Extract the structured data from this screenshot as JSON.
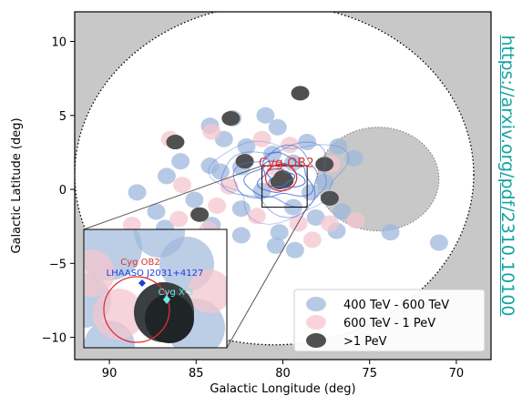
{
  "chart_data": {
    "type": "scatter",
    "title": "",
    "xlabel": "Galactic Longitude (deg)",
    "ylabel": "Galactic Latitude (deg)",
    "xlim": [
      92,
      68
    ],
    "ylim": [
      -11.5,
      12
    ],
    "x_ticks": [
      90,
      85,
      80,
      75,
      70
    ],
    "y_ticks": [
      10,
      5,
      0,
      -5,
      -10
    ],
    "x_tick_labels": [
      "90",
      "85",
      "80",
      "75",
      "70"
    ],
    "y_tick_labels": [
      "10",
      "5",
      "0",
      "−5",
      "−10"
    ],
    "legend_position": "bottom-right",
    "series": [
      {
        "name": "400 TeV - 600 TeV",
        "color": "#9fb8dc",
        "points": [
          [
            81.0,
            5.0
          ],
          [
            82.9,
            4.8
          ],
          [
            80.3,
            4.2
          ],
          [
            84.2,
            4.3
          ],
          [
            78.6,
            3.2
          ],
          [
            82.1,
            2.9
          ],
          [
            80.6,
            2.4
          ],
          [
            76.8,
            2.9
          ],
          [
            79.4,
            1.8
          ],
          [
            85.9,
            1.9
          ],
          [
            84.2,
            1.6
          ],
          [
            82.4,
            1.5
          ],
          [
            75.9,
            2.1
          ],
          [
            83.6,
            1.2
          ],
          [
            86.7,
            0.9
          ],
          [
            77.6,
            0.5
          ],
          [
            81.2,
            -0.1
          ],
          [
            78.4,
            -0.2
          ],
          [
            85.1,
            -0.7
          ],
          [
            82.4,
            -1.3
          ],
          [
            79.4,
            -1.2
          ],
          [
            76.6,
            -1.5
          ],
          [
            78.1,
            -1.9
          ],
          [
            87.3,
            -1.5
          ],
          [
            84.1,
            -2.4
          ],
          [
            80.2,
            -2.9
          ],
          [
            76.9,
            -2.8
          ],
          [
            82.4,
            -3.1
          ],
          [
            80.4,
            -3.8
          ],
          [
            79.3,
            -4.1
          ],
          [
            71.0,
            -3.6
          ],
          [
            73.8,
            -2.9
          ],
          [
            86.8,
            -2.6
          ],
          [
            88.4,
            -0.2
          ],
          [
            83.4,
            3.4
          ]
        ]
      },
      {
        "name": "600 TeV - 1 PeV",
        "color": "#f4c6cf",
        "points": [
          [
            84.1,
            3.9
          ],
          [
            86.5,
            3.4
          ],
          [
            81.2,
            3.4
          ],
          [
            79.6,
            3.0
          ],
          [
            85.8,
            0.3
          ],
          [
            83.1,
            0.2
          ],
          [
            77.2,
            1.7
          ],
          [
            80.4,
            1.4
          ],
          [
            83.8,
            -1.1
          ],
          [
            81.5,
            -1.8
          ],
          [
            79.1,
            -2.3
          ],
          [
            77.3,
            -2.3
          ],
          [
            75.8,
            -2.1
          ],
          [
            86.0,
            -2.0
          ],
          [
            84.3,
            -2.7
          ],
          [
            78.3,
            -3.4
          ],
          [
            85.5,
            -3.7
          ],
          [
            88.7,
            -2.4
          ]
        ]
      },
      {
        "name": ">1 PeV",
        "color": "#505050",
        "points": [
          [
            83.0,
            4.8
          ],
          [
            86.2,
            3.2
          ],
          [
            79.0,
            6.5
          ],
          [
            77.6,
            1.7
          ],
          [
            82.2,
            1.9
          ],
          [
            80.0,
            0.8
          ],
          [
            79.9,
            0.6
          ],
          [
            80.2,
            0.5
          ],
          [
            77.3,
            -0.6
          ],
          [
            84.8,
            -1.7
          ]
        ]
      }
    ],
    "annotations": [
      {
        "label": "Cyg OB2",
        "x": 79.8,
        "y": 1.5,
        "color": "#e03030"
      },
      {
        "label": "Cyg OB2",
        "color": "#e03030"
      },
      {
        "label": "LHAASO J2031+4127",
        "color": "#1f3fd6"
      },
      {
        "label": "Cyg X-3",
        "color": "#6fe8e8"
      }
    ],
    "contour_color": "#4a6fd8",
    "exclusion_color": "#c8c8c8"
  },
  "watermark": {
    "link_text": "https://arxiv.org/pdf/2310.10100"
  }
}
